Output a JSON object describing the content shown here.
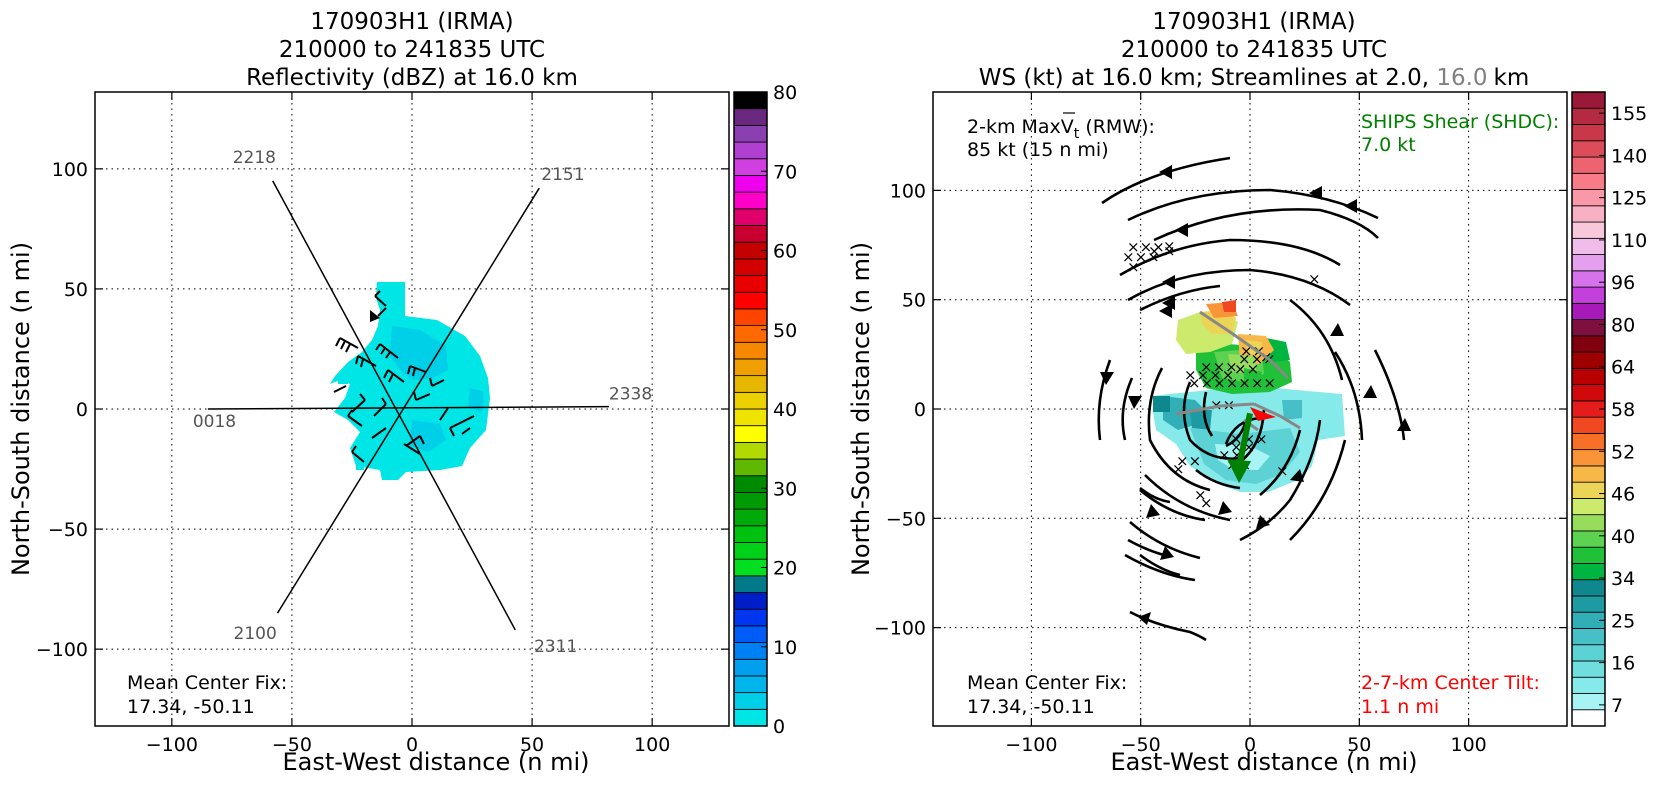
{
  "chart_data": [
    {
      "type": "heatmap",
      "title": [
        "170903H1 (IRMA)",
        "210000 to 241835 UTC",
        "Reflectivity (dBZ) at 16.0 km"
      ],
      "xlabel": "East-West distance (n mi)",
      "ylabel": "North-South distance (n mi)",
      "xlim": [
        -132,
        132
      ],
      "ylim": [
        -132,
        132
      ],
      "xticks": [
        "−100",
        "−50",
        "0",
        "50",
        "100"
      ],
      "yticks": [
        "−100",
        "−50",
        "0",
        "50",
        "100"
      ],
      "grid": true,
      "colorbar": {
        "ticks": [
          "0",
          "10",
          "20",
          "30",
          "40",
          "50",
          "60",
          "70",
          "80"
        ],
        "colors": [
          "#00e5e5",
          "#00cfe8",
          "#00b5ec",
          "#00a0ee",
          "#0080f5",
          "#005cf7",
          "#0036f0",
          "#001ec8",
          "#007a88",
          "#00e020",
          "#00d018",
          "#00c010",
          "#00aa08",
          "#009a04",
          "#008a00",
          "#60b800",
          "#b0da00",
          "#ffff00",
          "#eee400",
          "#ecd000",
          "#e8b800",
          "#f0a000",
          "#f68800",
          "#ff6a00",
          "#ff4400",
          "#ff0000",
          "#e80000",
          "#d40000",
          "#c40000",
          "#c80030",
          "#e0006c",
          "#ff00c8",
          "#ee00ee",
          "#d040e0",
          "#b040d0",
          "#8a40b0",
          "#6a2880",
          "#000000"
        ]
      },
      "flight_legs": [
        {
          "label": "2218",
          "start": [
            -58,
            95
          ],
          "end": [
            43,
            -92
          ]
        },
        {
          "label": "2151",
          "start": [
            53,
            92
          ],
          "end": [
            -56,
            -85
          ]
        },
        {
          "label": "2338",
          "start": [
            82,
            1
          ],
          "end": [
            -85,
            0
          ]
        },
        {
          "label": "0018",
          "start": [
            -85,
            0
          ],
          "end": [
            82,
            1
          ]
        },
        {
          "label": "2100",
          "start": [
            -56,
            -85
          ],
          "end": [
            53,
            92
          ]
        },
        {
          "label": "2311",
          "start": [
            50,
            -92
          ],
          "end": [
            -58,
            95
          ]
        }
      ],
      "annotation": [
        "Mean Center Fix:",
        "17.34, -50.11"
      ]
    },
    {
      "type": "heatmap",
      "title_lines": [
        "170903H1 (IRMA)",
        "210000 to 241835 UTC"
      ],
      "title_line3": {
        "main": "WS (kt) at 16.0 km; Streamlines at 2.0, ",
        "gray": "16.0",
        "unit": "km"
      },
      "xlabel": "East-West distance (n mi)",
      "ylabel": "North-South distance (n mi)",
      "xlim": [
        -145,
        145
      ],
      "ylim": [
        -145,
        145
      ],
      "xticks": [
        "−100",
        "−50",
        "0",
        "50",
        "100"
      ],
      "yticks": [
        "−100",
        "−50",
        "0",
        "50",
        "100"
      ],
      "grid": true,
      "colorbar": {
        "ticks": [
          "7",
          "16",
          "25",
          "34",
          "40",
          "46",
          "52",
          "58",
          "64",
          "80",
          "96",
          "110",
          "125",
          "140",
          "155"
        ],
        "colors": [
          "#ffffff",
          "#a8f4f4",
          "#86eaea",
          "#70dede",
          "#5cd2d4",
          "#46c0c6",
          "#32aeb6",
          "#1e9aa2",
          "#0e888e",
          "#00b440",
          "#20c038",
          "#5cd250",
          "#98dc5c",
          "#ccea6c",
          "#ecd456",
          "#f8b848",
          "#fa9438",
          "#f87028",
          "#f04820",
          "#e41c1c",
          "#d00a0a",
          "#b80000",
          "#9e0000",
          "#800010",
          "#7e1040",
          "#a81ab8",
          "#c440dc",
          "#d672ec",
          "#e4a0ee",
          "#f0bcea",
          "#f8c8da",
          "#f8b0c4",
          "#f898a8",
          "#f87c88",
          "#ec6470",
          "#dc4c5a",
          "#c83848",
          "#b42a40",
          "#9a1838"
        ]
      },
      "annotation_rmw": "2-km MaxV",
      "annotation_rmw_sub": "t",
      "annotation_rmw_rest": " (RMW):",
      "annotation_rmw_value": "85 kt (15 n mi)",
      "ships_shear": [
        "SHIPS Shear (SHDC):",
        "7.0 kt"
      ],
      "center_fix": [
        "Mean Center Fix:",
        "17.34, -50.11"
      ],
      "center_tilt": [
        "2-7-km Center Tilt:",
        "1.1 n mi"
      ],
      "shear_vector": {
        "start": [
          0,
          -2
        ],
        "end": [
          -5,
          -33
        ]
      },
      "tilt_vector": {
        "start": [
          0,
          0
        ],
        "end": [
          10,
          0
        ]
      }
    }
  ]
}
